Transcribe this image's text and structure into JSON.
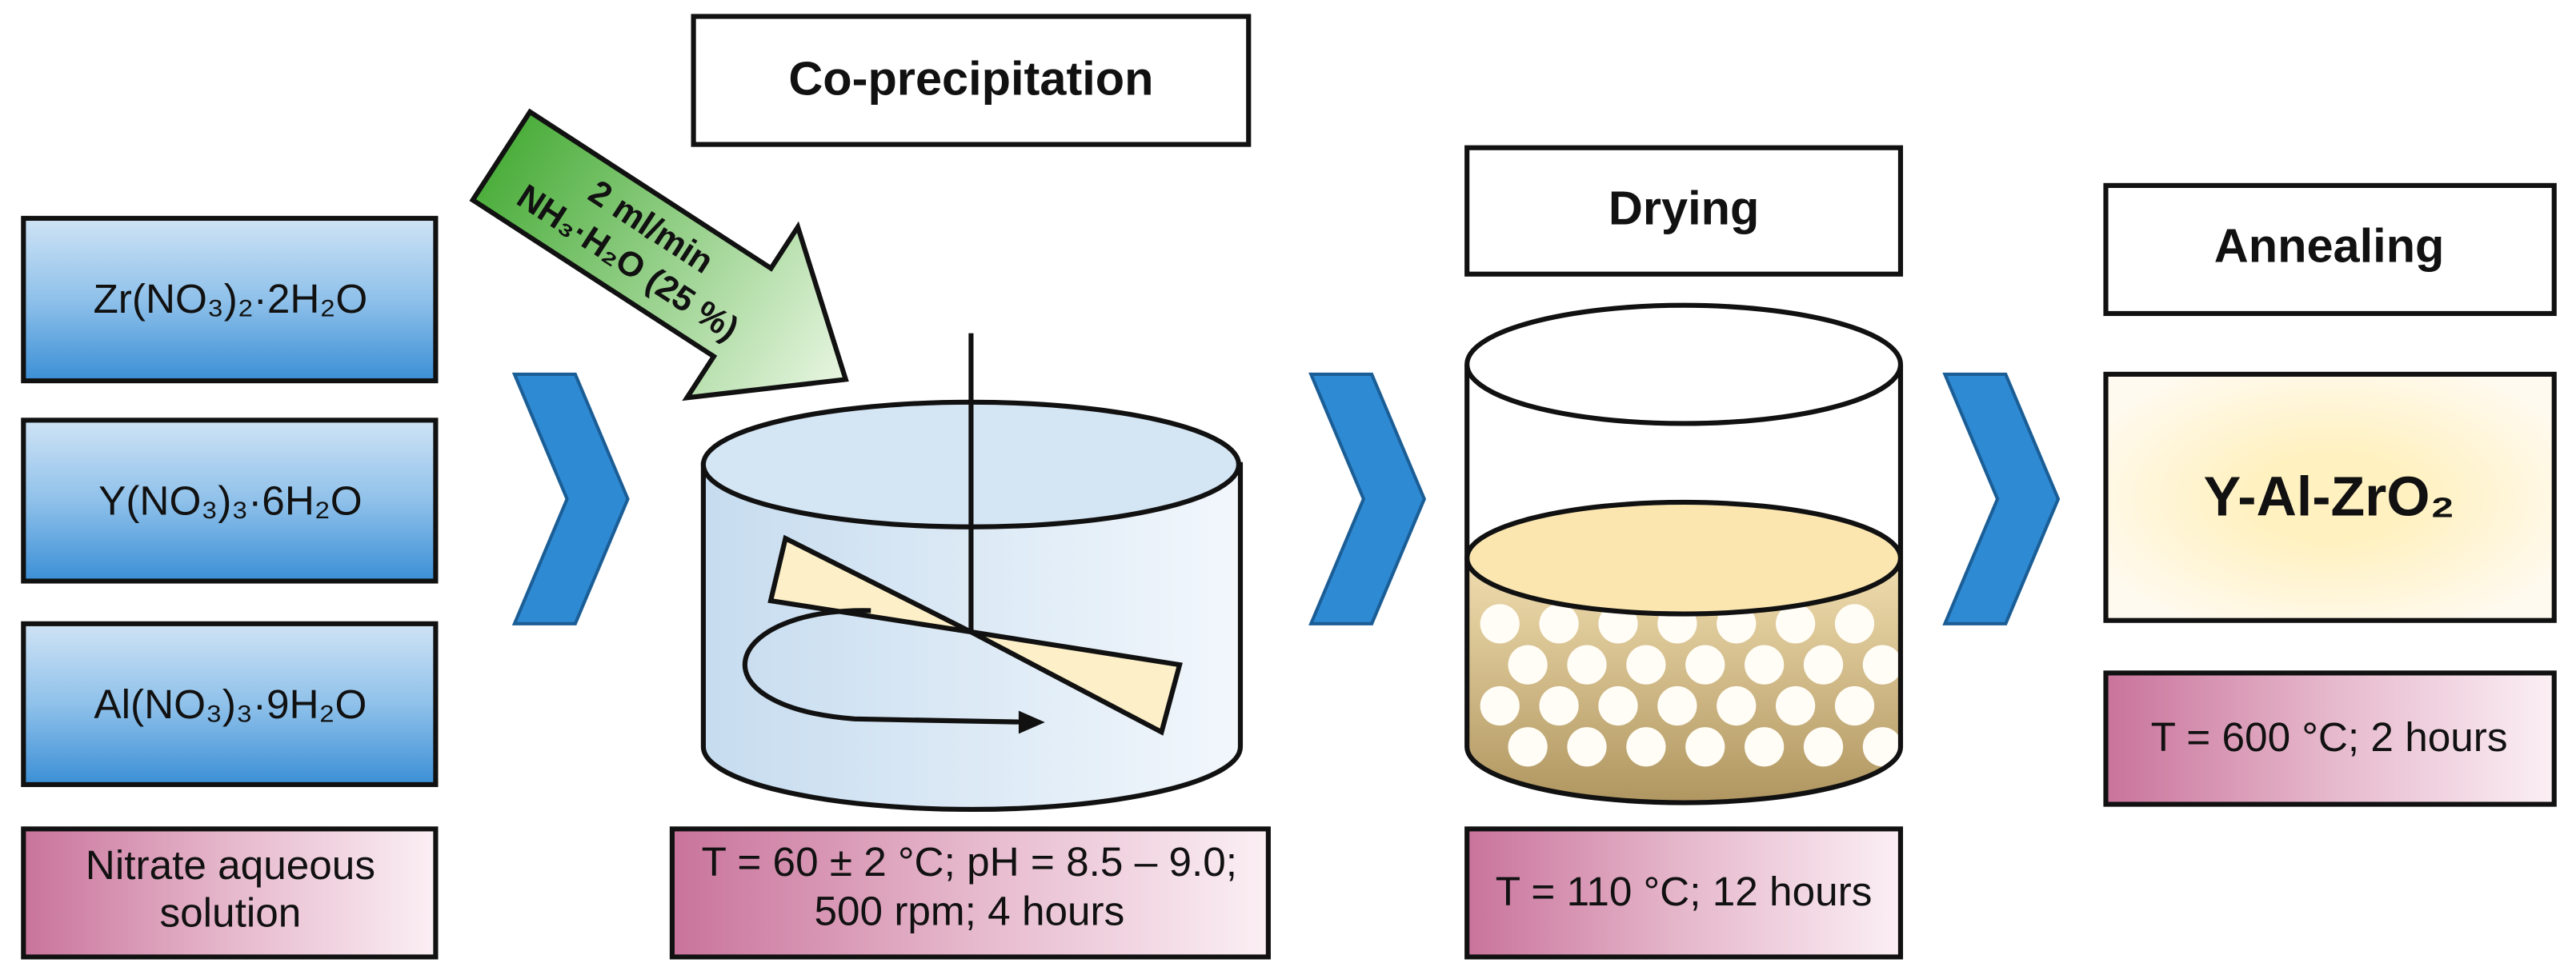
{
  "precursors": [
    "Zr(NO₃)₂·2H₂O",
    "Y(NO₃)₃·6H₂O",
    "Al(NO₃)₃·9H₂O"
  ],
  "precursor_note": [
    "Nitrate aqueous",
    "solution"
  ],
  "reagent": [
    "2 ml/min",
    "NH₃·H₂O (25 %)"
  ],
  "stages": [
    {
      "title": "Co-precipitation",
      "conditions": [
        "T = 60 ± 2 °C; pH = 8.5 – 9.0;",
        "500 rpm; 4 hours"
      ]
    },
    {
      "title": "Drying",
      "conditions": [
        "T = 110 °C; 12 hours"
      ]
    },
    {
      "title": "Annealing",
      "conditions": [
        "T = 600 °C; 2 hours"
      ]
    }
  ],
  "product": "Y-Al-ZrO₂"
}
